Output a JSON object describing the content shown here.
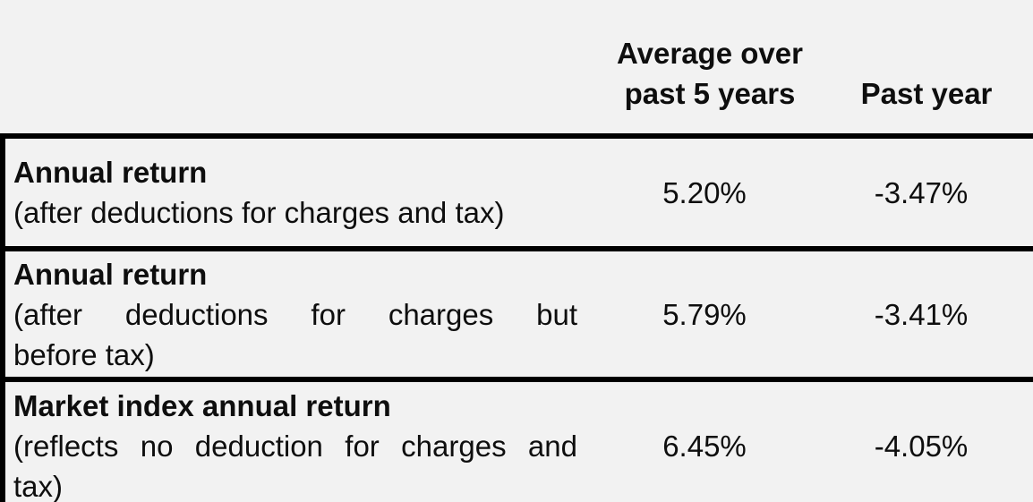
{
  "page": {
    "background_color": "#f2f2f2",
    "border_color": "#000000",
    "text_color": "#0e0e0e"
  },
  "table": {
    "columns": {
      "avg": "Average over past 5 years",
      "past": "Past year"
    },
    "rows": [
      {
        "title": "Annual return",
        "subtitle_lines": [
          "(after deductions for charges and tax)"
        ],
        "avg": "5.20%",
        "past": "-3.47%"
      },
      {
        "title": "Annual return",
        "subtitle_lines": [
          "(after deductions for charges but",
          "before tax)"
        ],
        "avg": "5.79%",
        "past": "-3.41%"
      },
      {
        "title": "Market index annual return",
        "subtitle_lines": [
          "(reflects no deduction for charges and",
          "tax)"
        ],
        "avg": "6.45%",
        "past": "-4.05%"
      }
    ]
  }
}
